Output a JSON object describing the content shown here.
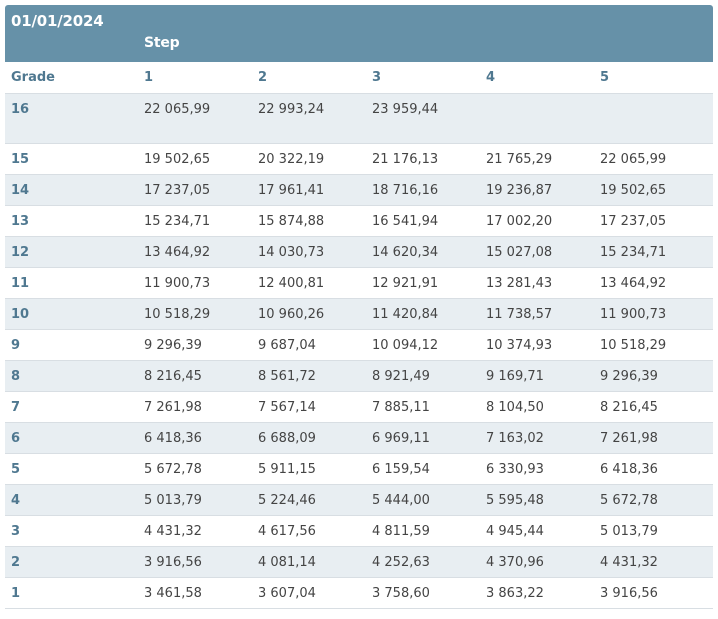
{
  "header": {
    "date": "01/01/2024",
    "step_label": "Step"
  },
  "columns": {
    "grade": "Grade",
    "steps": [
      "1",
      "2",
      "3",
      "4",
      "5"
    ]
  },
  "rows": [
    {
      "grade": "16",
      "values": [
        "22 065,99",
        "22 993,24",
        "23 959,44",
        "",
        ""
      ]
    },
    {
      "grade": "15",
      "values": [
        "19 502,65",
        "20 322,19",
        "21 176,13",
        "21 765,29",
        "22 065,99"
      ]
    },
    {
      "grade": "14",
      "values": [
        "17 237,05",
        "17 961,41",
        "18 716,16",
        "19 236,87",
        "19 502,65"
      ]
    },
    {
      "grade": "13",
      "values": [
        "15 234,71",
        "15 874,88",
        "16 541,94",
        "17 002,20",
        "17 237,05"
      ]
    },
    {
      "grade": "12",
      "values": [
        "13 464,92",
        "14 030,73",
        "14 620,34",
        "15 027,08",
        "15 234,71"
      ]
    },
    {
      "grade": "11",
      "values": [
        "11 900,73",
        "12 400,81",
        "12 921,91",
        "13 281,43",
        "13 464,92"
      ]
    },
    {
      "grade": "10",
      "values": [
        "10 518,29",
        "10 960,26",
        "11 420,84",
        "11 738,57",
        "11 900,73"
      ]
    },
    {
      "grade": "9",
      "values": [
        "9 296,39",
        "9 687,04",
        "10 094,12",
        "10 374,93",
        "10 518,29"
      ]
    },
    {
      "grade": "8",
      "values": [
        "8 216,45",
        "8 561,72",
        "8 921,49",
        "9 169,71",
        "9 296,39"
      ]
    },
    {
      "grade": "7",
      "values": [
        "7 261,98",
        "7 567,14",
        "7 885,11",
        "8 104,50",
        "8 216,45"
      ]
    },
    {
      "grade": "6",
      "values": [
        "6 418,36",
        "6 688,09",
        "6 969,11",
        "7 163,02",
        "7 261,98"
      ]
    },
    {
      "grade": "5",
      "values": [
        "5 672,78",
        "5 911,15",
        "6 159,54",
        "6 330,93",
        "6 418,36"
      ]
    },
    {
      "grade": "4",
      "values": [
        "5 013,79",
        "5 224,46",
        "5 444,00",
        "5 595,48",
        "5 672,78"
      ]
    },
    {
      "grade": "3",
      "values": [
        "4 431,32",
        "4 617,56",
        "4 811,59",
        "4 945,44",
        "5 013,79"
      ]
    },
    {
      "grade": "2",
      "values": [
        "3 916,56",
        "4 081,14",
        "4 252,63",
        "4 370,96",
        "4 431,32"
      ]
    },
    {
      "grade": "1",
      "values": [
        "3 461,58",
        "3 607,04",
        "3 758,60",
        "3 863,22",
        "3 916,56"
      ]
    }
  ]
}
